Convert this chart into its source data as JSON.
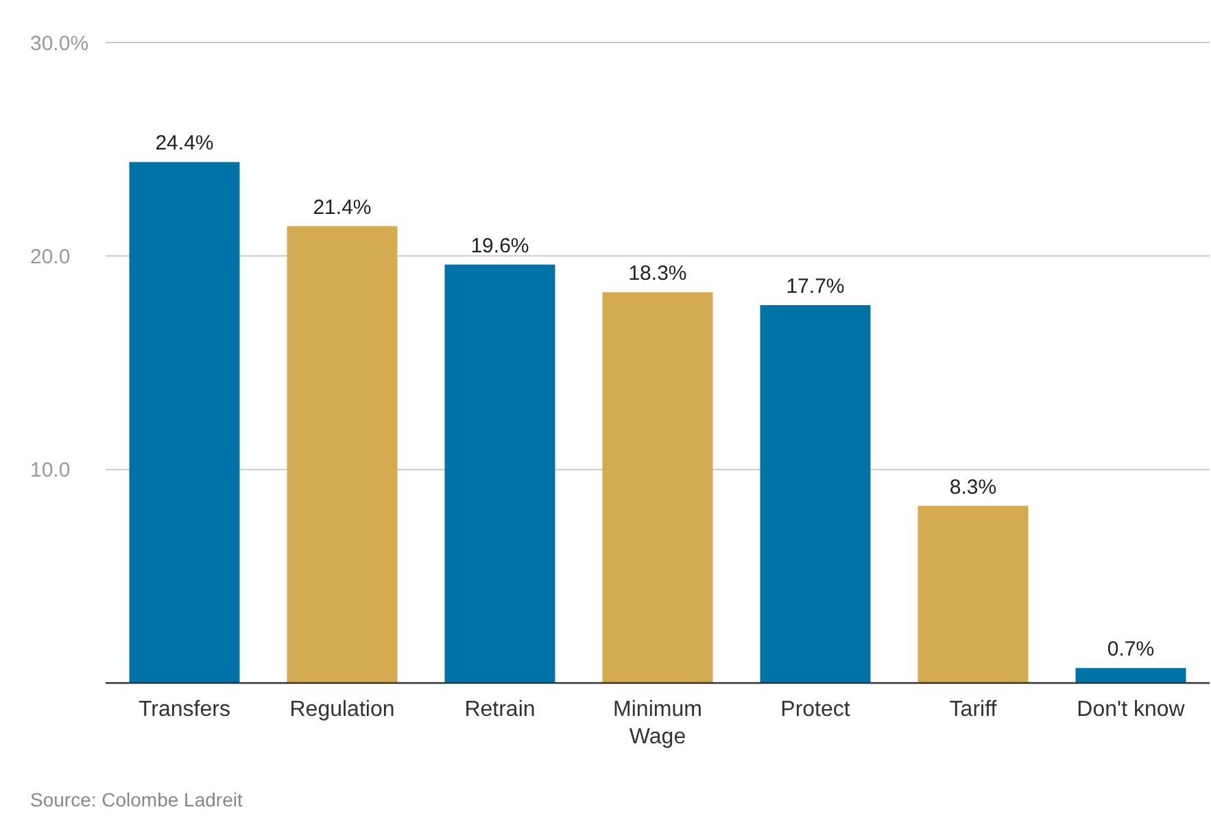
{
  "chart_data": {
    "type": "bar",
    "categories": [
      "Transfers",
      "Regulation",
      "Retrain",
      "Minimum Wage",
      "Protect",
      "Tariff",
      "Don't know"
    ],
    "values": [
      24.4,
      21.4,
      19.6,
      18.3,
      17.7,
      8.3,
      0.7
    ],
    "colors": [
      "#0073a6",
      "#d5ab52",
      "#0073a6",
      "#d5ab52",
      "#0073a6",
      "#d5ab52",
      "#0073a6"
    ],
    "value_labels": [
      "24.4%",
      "21.4%",
      "19.6%",
      "18.3%",
      "17.7%",
      "8.3%",
      "0.7%"
    ],
    "ylim": [
      0,
      30
    ],
    "yticks": [
      {
        "value": 0,
        "label": null
      },
      {
        "value": 10,
        "label": "10.0"
      },
      {
        "value": 20,
        "label": "20.0"
      },
      {
        "value": 30,
        "label": "30.0%"
      }
    ],
    "grid": "y",
    "annotations": [
      "Source: Colombe Ladreit"
    ]
  }
}
